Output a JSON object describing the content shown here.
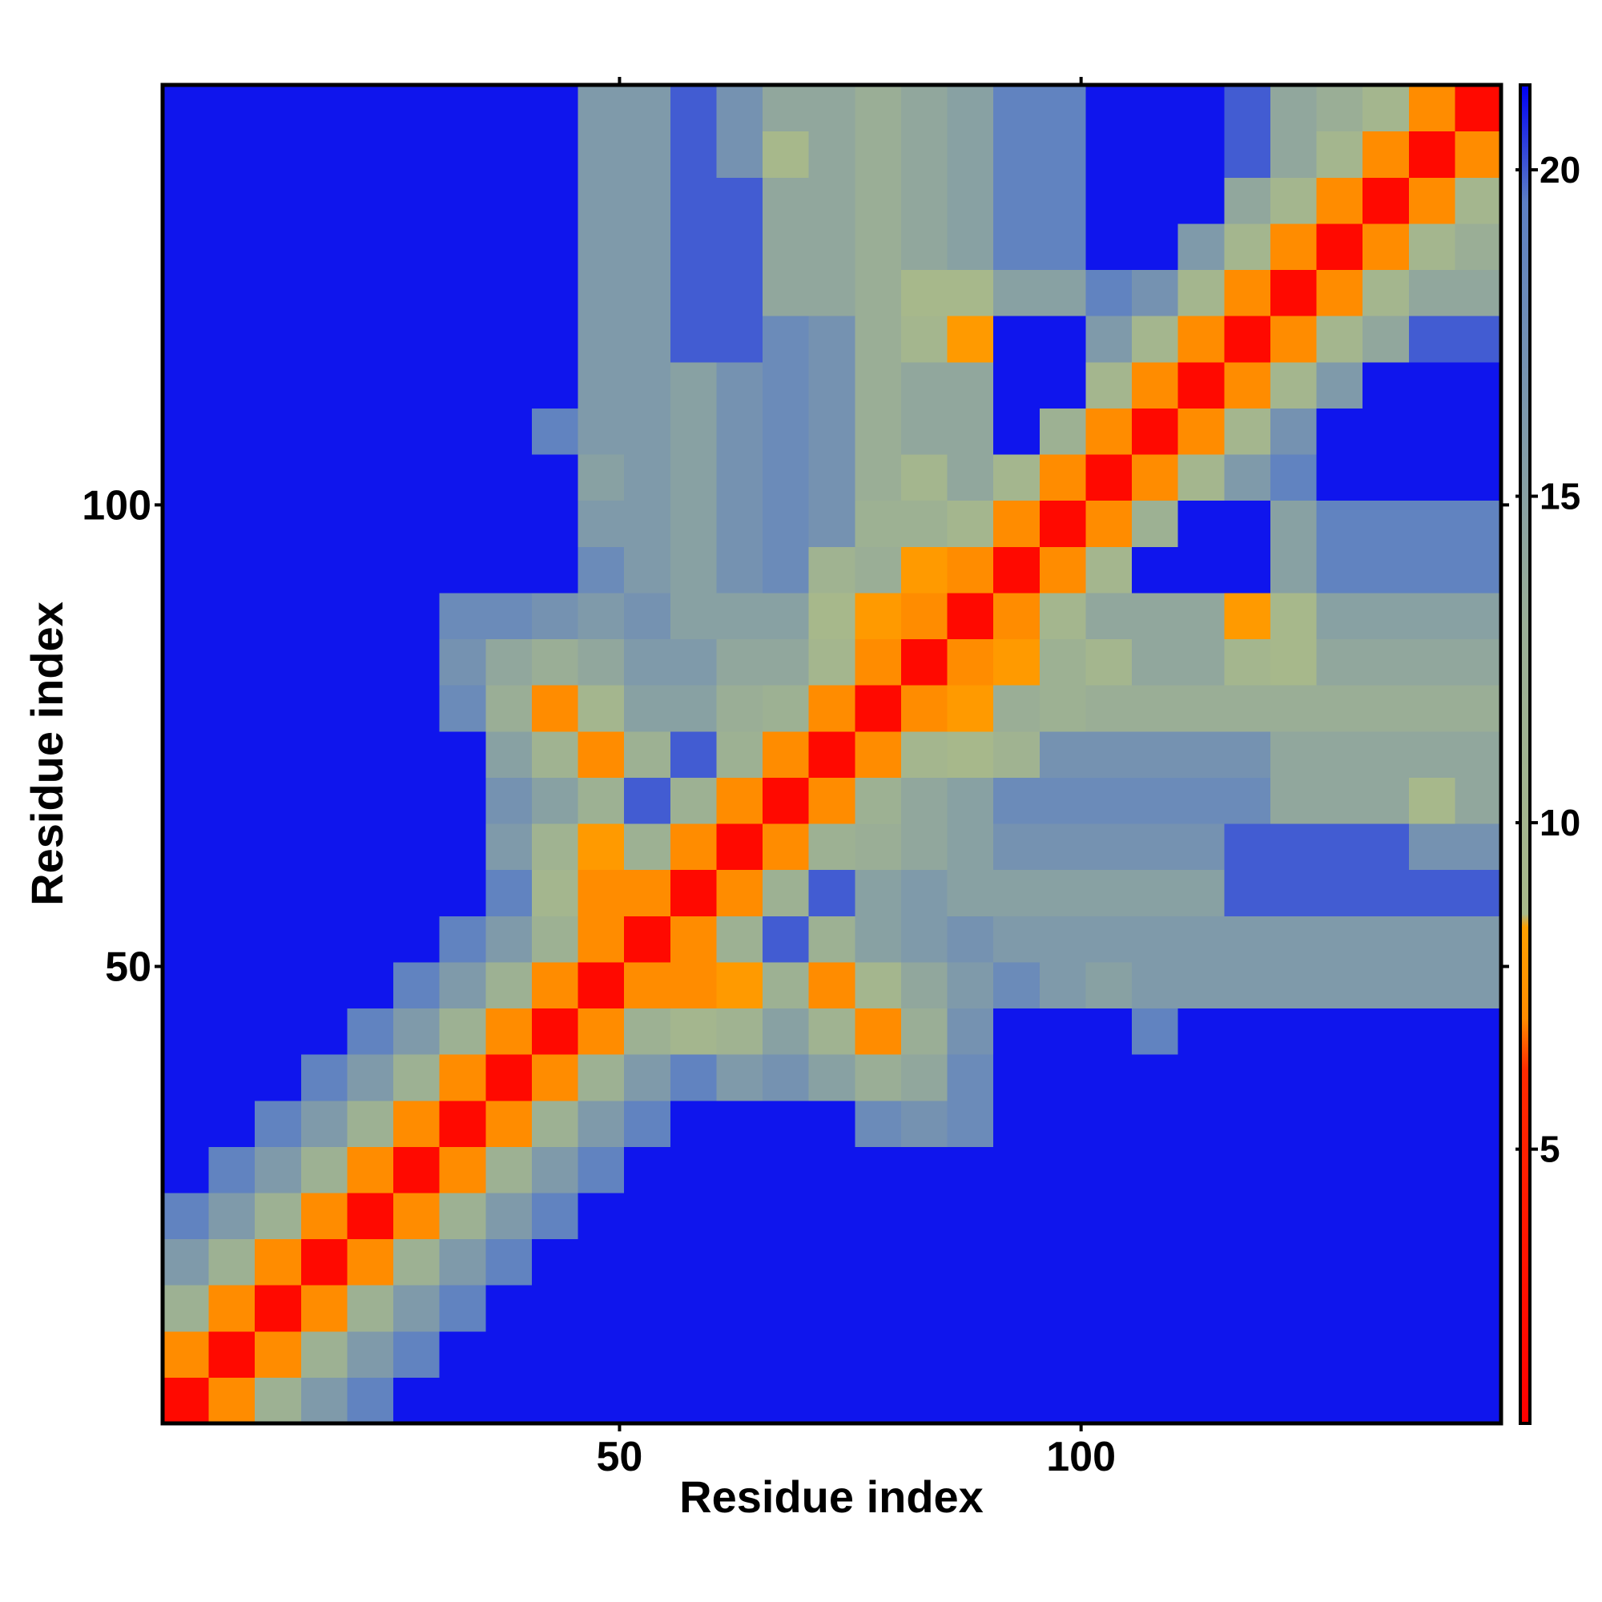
{
  "chart_data": {
    "type": "heatmap",
    "x_label": "Residue index",
    "y_label": "Residue index",
    "xlim": [
      0.5,
      145.5
    ],
    "ylim": [
      0.5,
      145.5
    ],
    "xticks": [
      50,
      100
    ],
    "yticks": [
      50,
      100
    ],
    "zlim": [
      0.8,
      21.3
    ],
    "zticks": [
      5,
      10,
      15,
      20
    ],
    "colorscale": [
      [
        0.8,
        "#ff0000"
      ],
      [
        6.2,
        "#ff2a00"
      ],
      [
        7.0,
        "#ff8c00"
      ],
      [
        8.4,
        "#ffa000"
      ],
      [
        8.6,
        "#a8b98a"
      ],
      [
        13.0,
        "#9aae96"
      ],
      [
        16.0,
        "#7f9aaa"
      ],
      [
        19.5,
        "#5c7fc4"
      ],
      [
        21.3,
        "#0000f5"
      ]
    ],
    "z": [
      [
        2,
        7,
        12,
        16,
        19,
        21,
        21,
        21,
        21,
        21,
        21,
        21,
        21,
        21,
        21,
        21,
        21,
        21,
        21,
        21,
        21,
        21,
        21,
        21,
        21,
        21,
        21,
        21,
        21
      ],
      [
        7,
        2,
        7,
        12,
        16,
        19,
        21,
        21,
        21,
        21,
        21,
        21,
        21,
        21,
        21,
        21,
        21,
        21,
        21,
        21,
        21,
        21,
        21,
        21,
        21,
        21,
        21,
        21,
        21
      ],
      [
        12,
        7,
        2,
        7,
        12,
        16,
        19,
        21,
        21,
        21,
        21,
        21,
        21,
        21,
        21,
        21,
        21,
        21,
        21,
        21,
        21,
        21,
        21,
        21,
        21,
        21,
        21,
        21,
        21
      ],
      [
        16,
        12,
        7,
        2,
        7,
        12,
        16,
        19,
        21,
        21,
        21,
        21,
        21,
        21,
        21,
        21,
        21,
        21,
        21,
        21,
        21,
        21,
        21,
        21,
        21,
        21,
        21,
        21,
        21
      ],
      [
        19,
        16,
        12,
        7,
        2,
        7,
        12,
        16,
        19,
        21,
        21,
        21,
        21,
        21,
        21,
        21,
        21,
        21,
        21,
        21,
        21,
        21,
        21,
        21,
        21,
        21,
        21,
        21,
        21
      ],
      [
        21,
        19,
        16,
        12,
        7,
        2,
        7,
        12,
        16,
        19,
        21,
        21,
        21,
        21,
        21,
        21,
        21,
        21,
        21,
        21,
        21,
        21,
        21,
        21,
        21,
        21,
        21,
        21,
        21
      ],
      [
        21,
        21,
        19,
        16,
        12,
        7,
        2,
        7,
        12,
        16,
        19,
        21,
        21,
        21,
        21,
        18,
        17,
        18,
        21,
        21,
        21,
        21,
        21,
        21,
        21,
        21,
        21,
        21,
        21
      ],
      [
        21,
        21,
        21,
        19,
        16,
        12,
        7,
        2,
        7,
        12,
        16,
        19,
        16,
        17,
        15,
        13,
        14,
        18,
        21,
        21,
        21,
        21,
        21,
        21,
        21,
        21,
        21,
        21,
        21
      ],
      [
        21,
        21,
        21,
        21,
        19,
        16,
        12,
        7,
        2,
        7,
        12,
        10,
        11,
        15,
        11,
        7,
        13,
        17,
        21,
        21,
        21,
        19,
        21,
        21,
        21,
        21,
        21,
        21,
        21
      ],
      [
        21,
        21,
        21,
        21,
        21,
        19,
        16,
        12,
        7,
        2,
        7,
        7,
        8,
        12,
        7,
        10,
        14,
        16,
        18,
        16,
        15,
        16,
        16,
        16,
        16,
        16,
        16,
        16,
        16
      ],
      [
        21,
        21,
        21,
        21,
        21,
        21,
        19,
        16,
        12,
        7,
        2,
        7,
        12,
        20,
        12,
        15,
        16,
        17,
        16,
        16,
        16,
        16,
        16,
        16,
        16,
        16,
        16,
        16,
        16
      ],
      [
        21,
        21,
        21,
        21,
        21,
        21,
        21,
        19,
        10,
        7,
        7,
        2,
        7,
        12,
        20,
        15,
        16,
        15,
        15,
        15,
        15,
        15,
        15,
        20,
        20,
        20,
        20,
        20,
        20
      ],
      [
        21,
        21,
        21,
        21,
        21,
        21,
        21,
        16,
        11,
        8,
        12,
        7,
        2,
        7,
        12,
        13,
        14,
        15,
        17,
        17,
        17,
        17,
        17,
        20,
        20,
        20,
        20,
        17,
        17
      ],
      [
        21,
        21,
        21,
        21,
        21,
        21,
        21,
        17,
        15,
        12,
        20,
        12,
        7,
        2,
        7,
        12,
        14,
        15,
        18,
        18,
        18,
        18,
        18,
        18,
        14,
        14,
        14,
        9,
        14
      ],
      [
        21,
        21,
        21,
        21,
        21,
        21,
        21,
        15,
        11,
        7,
        12,
        20,
        12,
        7,
        2,
        7,
        10,
        9,
        11,
        17,
        17,
        17,
        17,
        17,
        14,
        14,
        14,
        14,
        14
      ],
      [
        21,
        21,
        21,
        21,
        21,
        21,
        18,
        13,
        7,
        10,
        15,
        15,
        13,
        12,
        7,
        2,
        7,
        8,
        13,
        12,
        13,
        13,
        13,
        13,
        13,
        13,
        13,
        13,
        13
      ],
      [
        21,
        21,
        21,
        21,
        21,
        21,
        17,
        14,
        13,
        14,
        16,
        16,
        14,
        14,
        10,
        7,
        2,
        7,
        8,
        12,
        10,
        14,
        14,
        10,
        9,
        14,
        14,
        14,
        14
      ],
      [
        21,
        21,
        21,
        21,
        21,
        21,
        18,
        18,
        17,
        16,
        17,
        15,
        15,
        15,
        9,
        8,
        7,
        2,
        7,
        10,
        14,
        14,
        14,
        8,
        9,
        15,
        15,
        15,
        15
      ],
      [
        21,
        21,
        21,
        21,
        21,
        21,
        21,
        21,
        21,
        18,
        16,
        15,
        17,
        18,
        11,
        13,
        8,
        7,
        2,
        7,
        10,
        21,
        21,
        21,
        15,
        19,
        19,
        19,
        19
      ],
      [
        21,
        21,
        21,
        21,
        21,
        21,
        21,
        21,
        21,
        16,
        16,
        15,
        17,
        18,
        17,
        12,
        12,
        10,
        7,
        2,
        7,
        12,
        21,
        21,
        15,
        19,
        19,
        19,
        19
      ],
      [
        21,
        21,
        21,
        21,
        21,
        21,
        21,
        21,
        21,
        15,
        16,
        15,
        17,
        18,
        17,
        13,
        10,
        14,
        10,
        7,
        2,
        7,
        10,
        16,
        19,
        21,
        21,
        21,
        21
      ],
      [
        21,
        21,
        21,
        21,
        21,
        21,
        21,
        21,
        19,
        16,
        16,
        15,
        17,
        18,
        17,
        13,
        14,
        14,
        21,
        12,
        7,
        2,
        7,
        10,
        17,
        21,
        21,
        21,
        21
      ],
      [
        21,
        21,
        21,
        21,
        21,
        21,
        21,
        21,
        21,
        16,
        16,
        15,
        17,
        18,
        17,
        13,
        14,
        14,
        21,
        21,
        10,
        7,
        2,
        7,
        10,
        16,
        21,
        21,
        21
      ],
      [
        21,
        21,
        21,
        21,
        21,
        21,
        21,
        21,
        21,
        16,
        16,
        20,
        20,
        18,
        17,
        13,
        10,
        8,
        21,
        21,
        16,
        10,
        7,
        2,
        7,
        10,
        14,
        20,
        20
      ],
      [
        21,
        21,
        21,
        21,
        21,
        21,
        21,
        21,
        21,
        16,
        16,
        20,
        20,
        14,
        14,
        13,
        9,
        9,
        15,
        15,
        19,
        17,
        10,
        7,
        2,
        7,
        10,
        14,
        14
      ],
      [
        21,
        21,
        21,
        21,
        21,
        21,
        21,
        21,
        21,
        16,
        16,
        20,
        20,
        14,
        14,
        13,
        14,
        15,
        19,
        19,
        21,
        21,
        16,
        10,
        7,
        2,
        7,
        10,
        13
      ],
      [
        21,
        21,
        21,
        21,
        21,
        21,
        21,
        21,
        21,
        16,
        16,
        20,
        20,
        14,
        14,
        13,
        14,
        15,
        19,
        19,
        21,
        21,
        21,
        14,
        10,
        7,
        2,
        7,
        10
      ],
      [
        21,
        21,
        21,
        21,
        21,
        21,
        21,
        21,
        21,
        16,
        16,
        20,
        17,
        9,
        14,
        13,
        14,
        15,
        19,
        19,
        21,
        21,
        21,
        20,
        14,
        10,
        7,
        2,
        7
      ],
      [
        21,
        21,
        21,
        21,
        21,
        21,
        21,
        21,
        21,
        16,
        16,
        20,
        17,
        14,
        14,
        13,
        14,
        15,
        19,
        19,
        21,
        21,
        21,
        20,
        14,
        13,
        10,
        7,
        2
      ]
    ]
  }
}
